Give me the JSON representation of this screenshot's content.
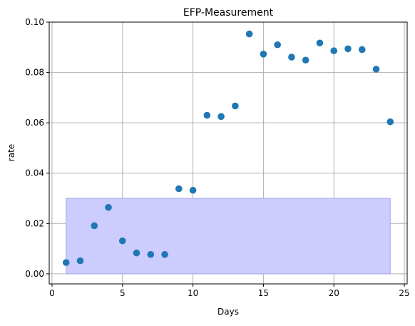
{
  "chart_data": {
    "type": "scatter",
    "title": "EFP-Measurement",
    "xlabel": "Days",
    "ylabel": "rate",
    "xlim": [
      -0.2,
      25.2
    ],
    "ylim": [
      -0.004,
      0.1
    ],
    "xticks": [
      0,
      5,
      10,
      15,
      20,
      25
    ],
    "xtick_labels": [
      "0",
      "5",
      "10",
      "15",
      "20",
      "25"
    ],
    "yticks": [
      0.0,
      0.02,
      0.04,
      0.06,
      0.08,
      0.1
    ],
    "ytick_labels": [
      "0.00",
      "0.02",
      "0.04",
      "0.06",
      "0.08",
      "0.10"
    ],
    "grid": true,
    "marker_color": "#1f77b4",
    "band": {
      "x0": 1,
      "x1": 24,
      "y0": 0.0,
      "y1": 0.03,
      "fill": "#ccccff",
      "edge": "#a8a8e8"
    },
    "x": [
      1,
      2,
      3,
      4,
      5,
      6,
      7,
      8,
      9,
      10,
      11,
      12,
      13,
      14,
      15,
      16,
      17,
      18,
      19,
      20,
      21,
      22,
      23,
      24
    ],
    "y": [
      0.0045,
      0.0052,
      0.0191,
      0.0264,
      0.0131,
      0.0083,
      0.0077,
      0.0077,
      0.0338,
      0.0332,
      0.063,
      0.0625,
      0.0667,
      0.0953,
      0.0873,
      0.091,
      0.0861,
      0.0849,
      0.0917,
      0.0886,
      0.0894,
      0.0891,
      0.0813,
      0.0604
    ]
  }
}
